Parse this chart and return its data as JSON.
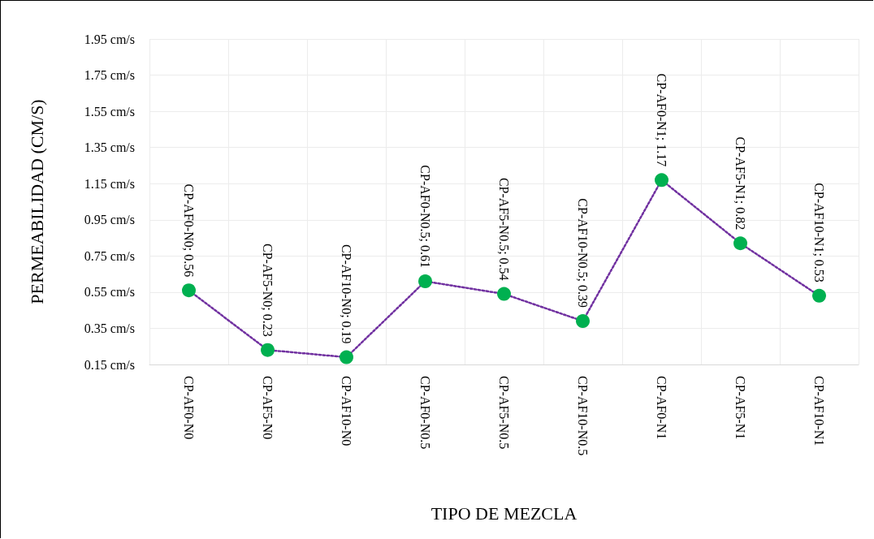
{
  "chart_data": {
    "type": "line",
    "xlabel": "TIPO DE MEZCLA",
    "ylabel": "PERMEABILIDAD (CM/S)",
    "categories": [
      "CP-AF0-N0",
      "CP-AF5-N0",
      "CP-AF10-N0",
      "CP-AF0-N0.5",
      "CP-AF5-N0.5",
      "CP-AF10-N0.5",
      "CP-AF0-N1",
      "CP-AF5-N1",
      "CP-AF10-N1"
    ],
    "series": [
      {
        "color": "#7030a0",
        "colors": [
          "#00b050",
          "#00b050",
          "#00b050",
          "#00b050",
          "#00b050",
          "#00b050",
          "#00b050",
          "#00b050",
          "#00b050"
        ],
        "values": [
          0.56,
          0.23,
          0.19,
          0.61,
          0.54,
          0.39,
          1.17,
          0.82,
          0.53
        ],
        "value_labels": [
          "CP-AF0-N0; 0.56",
          "CP-AF5-N0; 0.23",
          "CP-AF10-N0; 0.19",
          "CP-AF0-N0.5; 0.61",
          "CP-AF5-N0.5; 0.54",
          "CP-AF10-N0.5; 0.39",
          "CP-AF0-N1; 1.17",
          "CP-AF5-N1; 0.82",
          "CP-AF10-N1; 0.53"
        ]
      }
    ],
    "ylim": [
      0.15,
      1.95
    ],
    "yticks": [
      {
        "value": 0.15,
        "label": "0.15 cm/s"
      },
      {
        "value": 0.35,
        "label": "0.35 cm/s"
      },
      {
        "value": 0.55,
        "label": "0.55 cm/s"
      },
      {
        "value": 0.75,
        "label": "0.75 cm/s"
      },
      {
        "value": 0.95,
        "label": "0.95 cm/s"
      },
      {
        "value": 1.15,
        "label": "1.15 cm/s"
      },
      {
        "value": 1.35,
        "label": "1.35 cm/s"
      },
      {
        "value": 1.55,
        "label": "1.55 cm/s"
      },
      {
        "value": 1.75,
        "label": "1.75 cm/s"
      },
      {
        "value": 1.95,
        "label": "1.95 cm/s"
      }
    ],
    "grid": true,
    "marker": "circle",
    "line_style": "dotted"
  }
}
